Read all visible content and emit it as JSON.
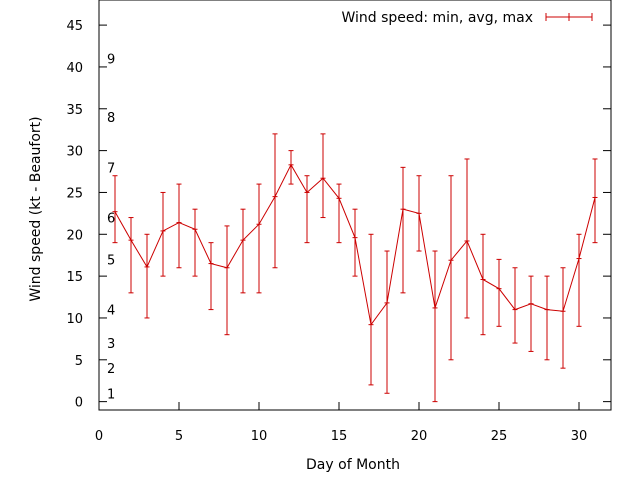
{
  "chart_data": {
    "type": "line",
    "xlabel": "Day of Month",
    "ylabel": "Wind speed (kt - Beaufort)",
    "xlim": [
      0,
      32
    ],
    "ylim": [
      -1,
      48
    ],
    "xticks": [
      0,
      5,
      10,
      15,
      20,
      25,
      30
    ],
    "yticks": [
      0,
      5,
      10,
      15,
      20,
      25,
      30,
      35,
      40,
      45
    ],
    "grid": false,
    "legend_position": "top-right",
    "beaufort_labels": [
      {
        "label": "1",
        "y": 1
      },
      {
        "label": "2",
        "y": 4
      },
      {
        "label": "3",
        "y": 7
      },
      {
        "label": "4",
        "y": 11
      },
      {
        "label": "5",
        "y": 17
      },
      {
        "label": "6",
        "y": 22
      },
      {
        "label": "7",
        "y": 28
      },
      {
        "label": "8",
        "y": 34
      },
      {
        "label": "9",
        "y": 41
      }
    ],
    "series": [
      {
        "name": "Wind speed: min, avg, max",
        "color": "#cc0000",
        "x": [
          1,
          2,
          3,
          4,
          5,
          6,
          7,
          8,
          9,
          10,
          11,
          12,
          13,
          14,
          15,
          16,
          17,
          18,
          19,
          20,
          21,
          22,
          23,
          24,
          25,
          26,
          27,
          28,
          29,
          30,
          31
        ],
        "avg": [
          22.7,
          19.3,
          16.1,
          20.4,
          21.4,
          20.6,
          16.5,
          16.0,
          19.3,
          21.2,
          24.5,
          28.3,
          25.0,
          26.7,
          24.3,
          19.6,
          9.2,
          11.8,
          23.0,
          22.5,
          11.2,
          16.9,
          19.2,
          14.6,
          13.5,
          11.0,
          11.7,
          11.0,
          10.8,
          17.1,
          24.4
        ],
        "min": [
          19,
          13,
          10,
          15,
          16,
          15,
          11,
          8,
          13,
          13,
          16,
          26,
          19,
          22,
          19,
          15,
          2,
          1,
          13,
          18,
          0,
          5,
          10,
          8,
          9,
          7,
          6,
          5,
          4,
          9,
          19
        ],
        "max": [
          27,
          22,
          20,
          25,
          26,
          23,
          19,
          21,
          23,
          26,
          32,
          30,
          27,
          32,
          26,
          23,
          20,
          18,
          28,
          27,
          18,
          27,
          29,
          20,
          17,
          16,
          15,
          15,
          16,
          20,
          29
        ]
      }
    ]
  }
}
